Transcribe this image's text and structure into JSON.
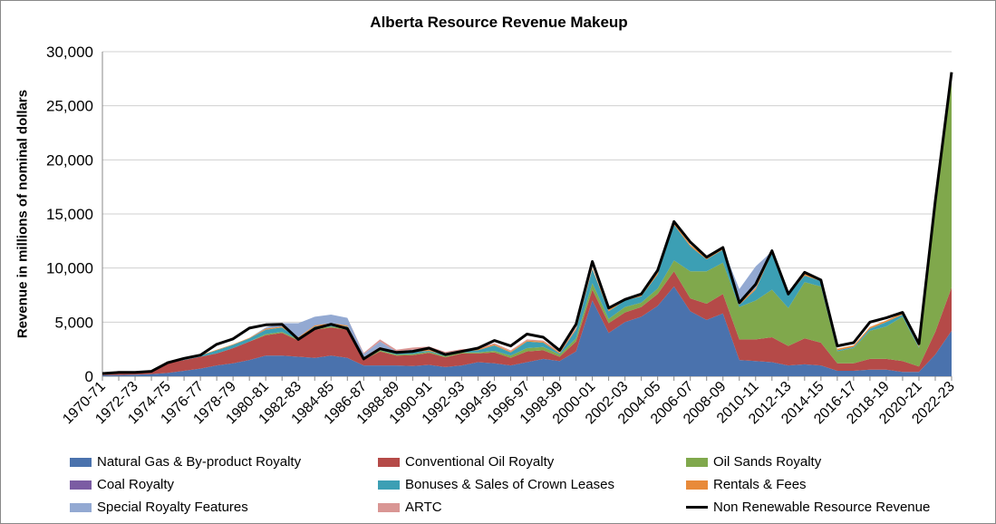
{
  "chart_data": {
    "type": "area",
    "title": "Alberta Resource Revenue Makeup",
    "ylabel": "Revenue in millions of nominal dollars",
    "xlabel": "",
    "ylim": [
      0,
      30000
    ],
    "yticks": [
      "0",
      "5,000",
      "10,000",
      "15,000",
      "20,000",
      "25,000",
      "30,000"
    ],
    "grid": true,
    "legend_position": "bottom",
    "categories": [
      "1970-71",
      "1971-72",
      "1972-73",
      "1973-74",
      "1974-75",
      "1975-76",
      "1976-77",
      "1977-78",
      "1978-79",
      "1979-80",
      "1980-81",
      "1981-82",
      "1982-83",
      "1983-84",
      "1984-85",
      "1985-86",
      "1986-87",
      "1987-88",
      "1988-89",
      "1989-90",
      "1990-91",
      "1991-92",
      "1992-93",
      "1993-94",
      "1994-95",
      "1995-96",
      "1996-97",
      "1997-98",
      "1998-99",
      "1999-00",
      "2000-01",
      "2001-02",
      "2002-03",
      "2003-04",
      "2004-05",
      "2005-06",
      "2006-07",
      "2007-08",
      "2008-09",
      "2009-10",
      "2010-11",
      "2011-12",
      "2012-13",
      "2013-14",
      "2014-15",
      "2015-16",
      "2016-17",
      "2017-18",
      "2018-19",
      "2019-20",
      "2020-21",
      "2021-22",
      "2022-23"
    ],
    "xtick_labels": [
      "1970-71",
      "1972-73",
      "1974-75",
      "1976-77",
      "1978-79",
      "1980-81",
      "1982-83",
      "1984-85",
      "1986-87",
      "1988-89",
      "1990-91",
      "1992-93",
      "1994-95",
      "1996-97",
      "1998-99",
      "2000-01",
      "2002-03",
      "2004-05",
      "2006-07",
      "2008-09",
      "2010-11",
      "2012-13",
      "2014-15",
      "2016-17",
      "2018-19",
      "2020-21",
      "2022-23"
    ],
    "series": [
      {
        "name": "Natural Gas & By-product Royalty",
        "color": "#4a72ad",
        "values": [
          100,
          120,
          150,
          200,
          300,
          500,
          700,
          1000,
          1200,
          1500,
          1900,
          1900,
          1800,
          1700,
          1900,
          1700,
          1000,
          1000,
          1000,
          950,
          1050,
          850,
          1000,
          1300,
          1200,
          1000,
          1300,
          1600,
          1400,
          2300,
          7000,
          4000,
          5000,
          5500,
          6500,
          8300,
          6000,
          5200,
          5800,
          1500,
          1400,
          1300,
          1000,
          1100,
          1000,
          500,
          500,
          600,
          600,
          400,
          400,
          2000,
          4200
        ]
      },
      {
        "name": "Conventional Oil Royalty",
        "color": "#b54a48",
        "values": [
          150,
          200,
          200,
          250,
          900,
          1000,
          1100,
          1100,
          1400,
          1700,
          1900,
          2100,
          1500,
          2600,
          2600,
          2600,
          500,
          1300,
          900,
          1000,
          1100,
          900,
          1100,
          800,
          1000,
          700,
          1000,
          800,
          400,
          900,
          1000,
          900,
          900,
          900,
          1100,
          1400,
          1200,
          1500,
          1800,
          1900,
          2000,
          2300,
          1800,
          2400,
          2100,
          700,
          700,
          1000,
          1000,
          1000,
          500,
          2100,
          4000
        ]
      },
      {
        "name": "Oil Sands Royalty",
        "color": "#80a84c",
        "values": [
          0,
          0,
          0,
          0,
          0,
          0,
          0,
          0,
          0,
          0,
          100,
          100,
          100,
          100,
          100,
          100,
          50,
          100,
          100,
          100,
          100,
          100,
          100,
          100,
          150,
          200,
          300,
          300,
          200,
          300,
          600,
          400,
          500,
          400,
          500,
          1000,
          2500,
          3000,
          2900,
          3000,
          3600,
          4400,
          3500,
          5200,
          5200,
          1100,
          1400,
          2600,
          3000,
          4100,
          1700,
          11500,
          19800
        ]
      },
      {
        "name": "Coal Royalty",
        "color": "#7b5ca3",
        "values": [
          0,
          0,
          0,
          0,
          0,
          0,
          0,
          0,
          0,
          0,
          0,
          0,
          0,
          0,
          0,
          0,
          0,
          0,
          0,
          0,
          0,
          0,
          0,
          0,
          0,
          0,
          0,
          0,
          0,
          0,
          0,
          0,
          0,
          0,
          0,
          0,
          0,
          0,
          0,
          0,
          0,
          0,
          0,
          0,
          0,
          0,
          0,
          0,
          0,
          0,
          0,
          0,
          0
        ]
      },
      {
        "name": "Bonuses & Sales of Crown Leases",
        "color": "#3c9fb4",
        "values": [
          0,
          0,
          0,
          0,
          50,
          100,
          100,
          300,
          300,
          300,
          400,
          400,
          100,
          200,
          200,
          200,
          100,
          200,
          100,
          200,
          100,
          100,
          100,
          200,
          500,
          300,
          600,
          400,
          100,
          800,
          1300,
          700,
          600,
          600,
          1300,
          3300,
          2300,
          1100,
          1200,
          200,
          1000,
          3400,
          1200,
          600,
          500,
          100,
          100,
          200,
          400,
          200,
          100,
          50,
          0
        ]
      },
      {
        "name": "Rentals & Fees",
        "color": "#e88a3a",
        "values": [
          50,
          50,
          50,
          50,
          50,
          50,
          50,
          50,
          50,
          50,
          100,
          100,
          100,
          100,
          100,
          100,
          100,
          100,
          100,
          100,
          100,
          100,
          100,
          100,
          100,
          100,
          100,
          100,
          100,
          100,
          100,
          150,
          150,
          150,
          150,
          150,
          150,
          150,
          150,
          150,
          150,
          150,
          150,
          150,
          150,
          150,
          150,
          150,
          150,
          150,
          150,
          150,
          150
        ]
      },
      {
        "name": "Special Royalty Features",
        "color": "#93a9d2",
        "values": [
          0,
          0,
          0,
          0,
          0,
          0,
          0,
          0,
          0,
          0,
          100,
          300,
          1300,
          800,
          800,
          700,
          300,
          500,
          100,
          100,
          100,
          50,
          0,
          0,
          0,
          0,
          0,
          0,
          0,
          0,
          0,
          0,
          0,
          0,
          0,
          0,
          0,
          0,
          0,
          1300,
          2000,
          0,
          0,
          0,
          0,
          0,
          0,
          0,
          0,
          0,
          0,
          0,
          0
        ]
      },
      {
        "name": "ARTC",
        "color": "#d99694",
        "values": [
          0,
          0,
          0,
          0,
          0,
          0,
          0,
          0,
          0,
          0,
          0,
          0,
          0,
          0,
          0,
          0,
          100,
          200,
          150,
          200,
          200,
          150,
          100,
          100,
          100,
          100,
          100,
          100,
          100,
          100,
          0,
          0,
          0,
          0,
          0,
          0,
          0,
          0,
          0,
          0,
          0,
          0,
          0,
          0,
          0,
          0,
          0,
          0,
          0,
          0,
          0,
          0,
          0
        ]
      },
      {
        "name": "Non Renewable Resource Revenue",
        "color": "#000000",
        "type": "line",
        "values": [
          250,
          350,
          350,
          450,
          1250,
          1650,
          1950,
          2950,
          3450,
          4450,
          4750,
          4800,
          3400,
          4400,
          4800,
          4400,
          1600,
          2550,
          2200,
          2300,
          2600,
          2000,
          2300,
          2600,
          3300,
          2800,
          3900,
          3600,
          2400,
          4800,
          10600,
          6300,
          7100,
          7600,
          9800,
          14300,
          12400,
          11000,
          11900,
          6800,
          8500,
          11600,
          7600,
          9600,
          8900,
          2800,
          3100,
          5000,
          5400,
          5900,
          3000,
          16200,
          28100
        ]
      }
    ]
  }
}
